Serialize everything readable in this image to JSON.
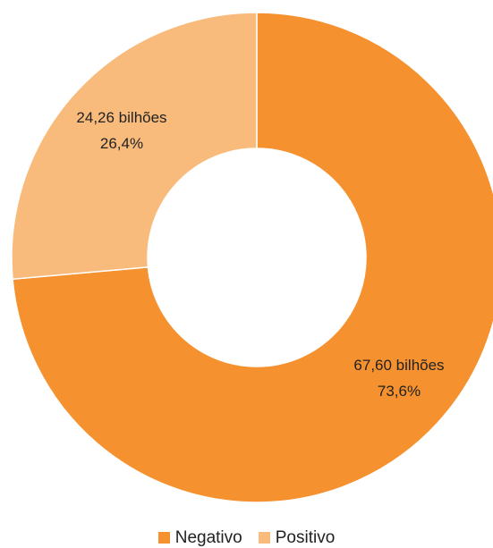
{
  "chart_data": {
    "type": "pie",
    "variant": "donut",
    "legend_position": "bottom",
    "series": [
      {
        "name": "Negativo",
        "value": 67.6,
        "percent": 73.6,
        "value_label": "67,60 bilhões",
        "percent_label": "73,6%",
        "color": "#F5912E"
      },
      {
        "name": "Positivo",
        "value": 24.26,
        "percent": 26.4,
        "value_label": "24,26 bilhões",
        "percent_label": "26,4%",
        "color": "#F9BB7C"
      }
    ]
  }
}
